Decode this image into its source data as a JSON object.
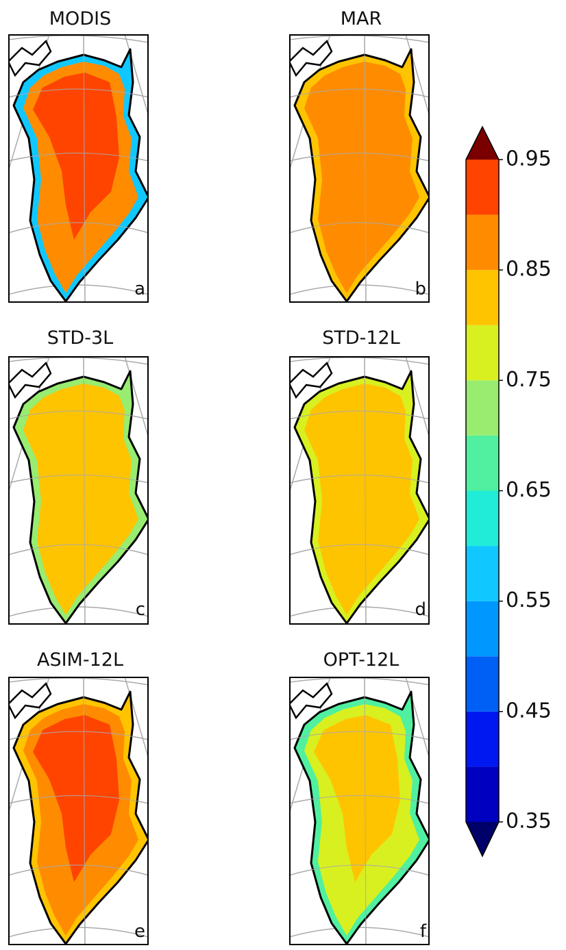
{
  "panels": [
    {
      "title": "MODIS",
      "letter": "a"
    },
    {
      "title": "MAR",
      "letter": "b"
    },
    {
      "title": "STD-3L",
      "letter": "c"
    },
    {
      "title": "STD-12L",
      "letter": "d"
    },
    {
      "title": "ASIM-12L",
      "letter": "e"
    },
    {
      "title": "OPT-12L",
      "letter": "f"
    }
  ],
  "colorbar": {
    "ticks": [
      0.35,
      0.45,
      0.55,
      0.65,
      0.75,
      0.85,
      0.95
    ],
    "levels": [
      0.35,
      0.4,
      0.45,
      0.5,
      0.55,
      0.6,
      0.65,
      0.7,
      0.75,
      0.8,
      0.85,
      0.9,
      0.95
    ],
    "colors": [
      "#0000c0",
      "#0018f0",
      "#0060f5",
      "#0098ff",
      "#10c8ff",
      "#20ecd8",
      "#50f0a0",
      "#98ec70",
      "#d8f020",
      "#ffc400",
      "#ff8c00",
      "#ff4400",
      "#d40000"
    ],
    "under_color": "#00006a",
    "over_color": "#7a0000"
  }
}
